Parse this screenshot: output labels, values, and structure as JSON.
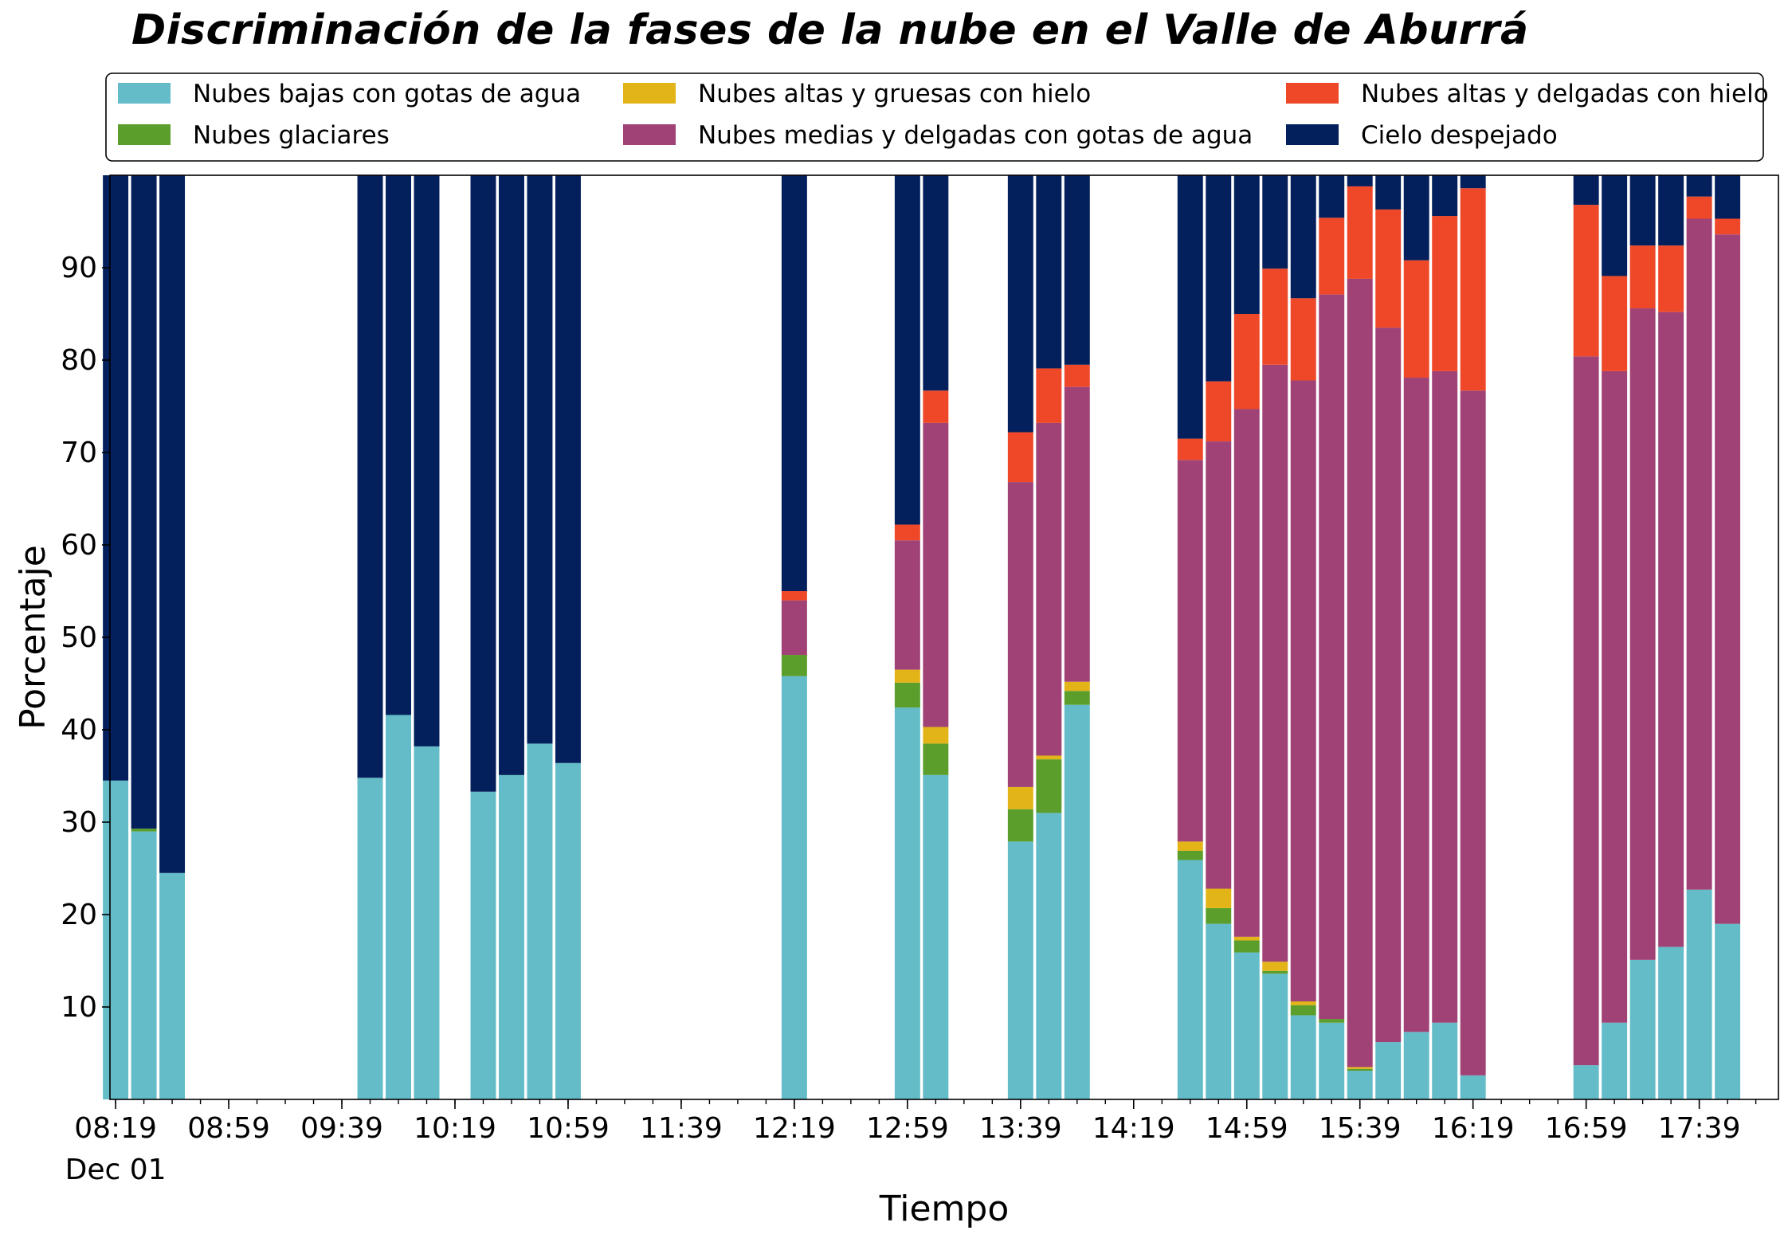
{
  "chart_data": {
    "type": "bar",
    "stacked": true,
    "title": "Discriminación de la fases de la nube en el Valle de Aburrá",
    "xlabel": "Tiempo",
    "ylabel": "Porcentaje",
    "ylim": [
      0,
      100
    ],
    "yticks": [
      10,
      20,
      30,
      40,
      50,
      60,
      70,
      80,
      90
    ],
    "x_tick_labels": [
      "08:19",
      "08:59",
      "09:39",
      "10:19",
      "10:59",
      "11:39",
      "12:19",
      "12:59",
      "13:39",
      "14:19",
      "14:59",
      "15:39",
      "16:19",
      "16:59",
      "17:39"
    ],
    "x_date_label": "Dec 01",
    "x_range_minutes": [
      497,
      1087
    ],
    "bar_width_minutes": 9,
    "legend_position": "top, outside plot, 3 columns",
    "grid": false,
    "series": [
      {
        "name": "Nubes bajas con gotas de agua",
        "color": "#63bcc8"
      },
      {
        "name": "Nubes glaciares",
        "color": "#5b9e2b"
      },
      {
        "name": "Nubes altas y gruesas con hielo",
        "color": "#e3b418"
      },
      {
        "name": "Nubes medias y delgadas con gotas de agua",
        "color": "#a04276"
      },
      {
        "name": "Nubes altas y delgadas con hielo",
        "color": "#ee4829"
      },
      {
        "name": "Cielo despejado",
        "color": "#031f5c"
      }
    ],
    "legend_layout": [
      [
        "Nubes bajas con gotas de agua",
        "Nubes altas y gruesas con hielo",
        "Nubes altas y delgadas con hielo"
      ],
      [
        "Nubes glaciares",
        "Nubes medias y delgadas con gotas de agua",
        "Cielo despejado"
      ]
    ],
    "bars": [
      {
        "time": "08:19",
        "values": [
          34.5,
          0,
          0,
          0,
          0,
          65.5
        ]
      },
      {
        "time": "08:29",
        "values": [
          29,
          0.3,
          0,
          0,
          0,
          70.7
        ]
      },
      {
        "time": "08:39",
        "values": [
          24.5,
          0,
          0,
          0,
          0,
          75.5
        ]
      },
      {
        "time": "09:49",
        "values": [
          34.8,
          0,
          0,
          0,
          0,
          65.2
        ]
      },
      {
        "time": "09:59",
        "values": [
          41.6,
          0,
          0,
          0,
          0,
          58.4
        ]
      },
      {
        "time": "10:09",
        "values": [
          38.2,
          0,
          0,
          0,
          0,
          61.8
        ]
      },
      {
        "time": "10:29",
        "values": [
          33.3,
          0,
          0,
          0,
          0,
          66.7
        ]
      },
      {
        "time": "10:39",
        "values": [
          35.1,
          0,
          0,
          0,
          0,
          64.9
        ]
      },
      {
        "time": "10:49",
        "values": [
          38.5,
          0,
          0,
          0,
          0,
          61.5
        ]
      },
      {
        "time": "10:59",
        "values": [
          36.4,
          0,
          0,
          0,
          0,
          63.6
        ]
      },
      {
        "time": "12:19",
        "values": [
          45.8,
          2.3,
          0,
          5.9,
          1.0,
          45.0
        ]
      },
      {
        "time": "12:59",
        "values": [
          42.4,
          2.7,
          1.4,
          14.0,
          1.7,
          37.8
        ]
      },
      {
        "time": "13:09",
        "values": [
          35.1,
          3.4,
          1.8,
          32.9,
          3.5,
          23.3
        ]
      },
      {
        "time": "13:39",
        "values": [
          27.9,
          3.5,
          2.4,
          33.0,
          5.4,
          27.8
        ]
      },
      {
        "time": "13:49",
        "values": [
          31.0,
          5.8,
          0.4,
          36.0,
          5.9,
          20.9
        ]
      },
      {
        "time": "13:59",
        "values": [
          42.7,
          1.5,
          1.0,
          31.9,
          2.4,
          20.5
        ]
      },
      {
        "time": "14:39",
        "values": [
          25.9,
          1.0,
          1.0,
          41.3,
          2.3,
          28.5
        ]
      },
      {
        "time": "14:49",
        "values": [
          19.0,
          1.7,
          2.1,
          48.4,
          6.5,
          22.3
        ]
      },
      {
        "time": "14:59",
        "values": [
          15.9,
          1.3,
          0.4,
          57.1,
          10.3,
          15.0
        ]
      },
      {
        "time": "15:09",
        "values": [
          13.6,
          0.3,
          1.0,
          64.6,
          10.4,
          10.1
        ]
      },
      {
        "time": "15:19",
        "values": [
          9.1,
          1.1,
          0.4,
          67.2,
          8.9,
          13.3
        ]
      },
      {
        "time": "15:29",
        "values": [
          8.3,
          0.4,
          0,
          78.4,
          8.3,
          4.6
        ]
      },
      {
        "time": "15:39",
        "values": [
          3.1,
          0.2,
          0.2,
          85.3,
          10.0,
          1.2
        ]
      },
      {
        "time": "15:49",
        "values": [
          6.2,
          0,
          0,
          77.3,
          12.8,
          3.7
        ]
      },
      {
        "time": "15:59",
        "values": [
          7.3,
          0,
          0,
          70.8,
          12.7,
          9.2
        ]
      },
      {
        "time": "16:09",
        "values": [
          8.3,
          0,
          0,
          70.5,
          16.8,
          4.4
        ]
      },
      {
        "time": "16:19",
        "values": [
          2.6,
          0,
          0,
          74.1,
          21.9,
          1.4
        ]
      },
      {
        "time": "16:59",
        "values": [
          3.7,
          0,
          0,
          76.7,
          16.4,
          3.2
        ]
      },
      {
        "time": "17:09",
        "values": [
          8.3,
          0,
          0,
          70.5,
          10.3,
          10.9
        ]
      },
      {
        "time": "17:19",
        "values": [
          15.1,
          0,
          0,
          70.5,
          6.8,
          7.6
        ]
      },
      {
        "time": "17:29",
        "values": [
          16.5,
          0,
          0,
          68.7,
          7.2,
          7.6
        ]
      },
      {
        "time": "17:39",
        "values": [
          22.7,
          0,
          0,
          72.6,
          2.4,
          2.3
        ]
      },
      {
        "time": "17:49",
        "values": [
          19.0,
          0,
          0,
          74.6,
          1.7,
          4.7
        ]
      }
    ]
  }
}
